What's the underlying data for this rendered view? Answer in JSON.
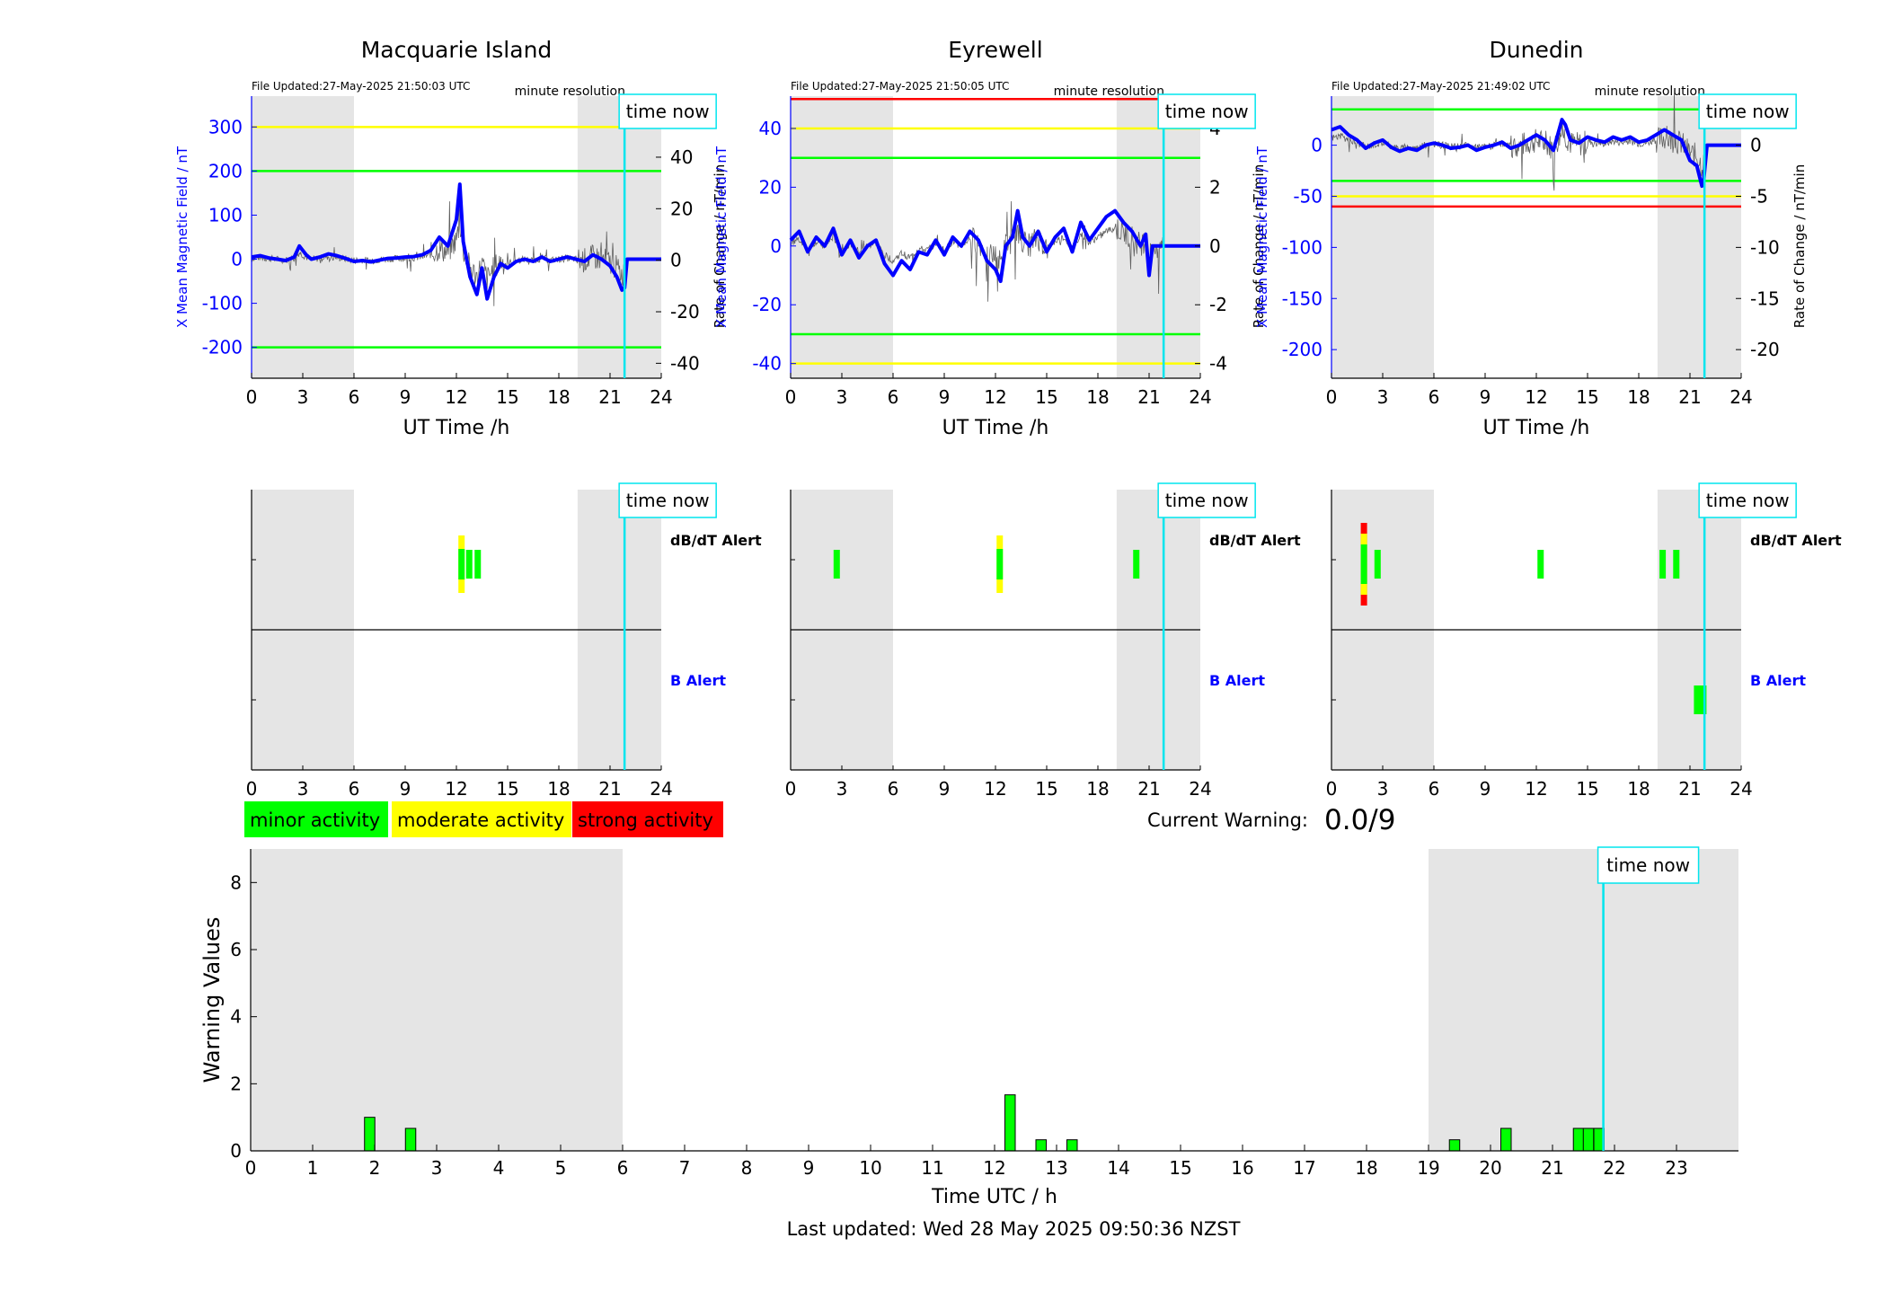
{
  "colors": {
    "shade": "#e5e5e5",
    "blue": "#0000ff",
    "cyan": "#00e5ee",
    "green": "#00ff00",
    "yellow": "#ffff00",
    "red": "#ff0000",
    "rate_trace": "#606060"
  },
  "stations": [
    {
      "id": "mq",
      "title": "Macquarie Island",
      "file_updated": "File Updated:27-May-2025 21:50:03 UTC",
      "resolution": "minute resolution",
      "time_now_label": "time now",
      "ylabel_left": "X Mean Magnetic Field / nT",
      "ylabel_right": "Rate of Change / nT/min",
      "xlabel": "UT Time /h",
      "ylim_left": [
        -270,
        370
      ],
      "ylim_right": [
        -45.8,
        63.7
      ],
      "yticks_left": [
        "300",
        "200",
        "100",
        "0",
        "-100",
        "-200"
      ],
      "yticks_right": [
        "60",
        "40",
        "20",
        "0",
        "-20",
        "-40"
      ],
      "xticks": [
        "0",
        "3",
        "6",
        "9",
        "12",
        "15",
        "18",
        "21",
        "24"
      ],
      "thresholds": [
        {
          "value": 300,
          "level": "yellow"
        },
        {
          "value": 200,
          "level": "green"
        },
        {
          "value": -200,
          "level": "green"
        }
      ],
      "time_now_h": 21.85,
      "shade_hours": [
        [
          0,
          6
        ],
        [
          19.1,
          24
        ]
      ],
      "mean_field_series": [
        [
          0,
          5
        ],
        [
          0.5,
          8
        ],
        [
          1,
          3
        ],
        [
          1.5,
          0
        ],
        [
          2,
          -3
        ],
        [
          2.5,
          5
        ],
        [
          2.8,
          30
        ],
        [
          3.2,
          10
        ],
        [
          3.5,
          0
        ],
        [
          4,
          5
        ],
        [
          4.5,
          12
        ],
        [
          5,
          8
        ],
        [
          5.5,
          2
        ],
        [
          6,
          -5
        ],
        [
          6.5,
          -3
        ],
        [
          7,
          -6
        ],
        [
          7.5,
          -2
        ],
        [
          8,
          2
        ],
        [
          8.5,
          3
        ],
        [
          9,
          5
        ],
        [
          9.5,
          6
        ],
        [
          10,
          10
        ],
        [
          10.5,
          20
        ],
        [
          11,
          50
        ],
        [
          11.5,
          30
        ],
        [
          12,
          90
        ],
        [
          12.2,
          170
        ],
        [
          12.4,
          40
        ],
        [
          12.8,
          -40
        ],
        [
          13.2,
          -80
        ],
        [
          13.5,
          -20
        ],
        [
          13.8,
          -90
        ],
        [
          14.2,
          -40
        ],
        [
          14.6,
          -10
        ],
        [
          15,
          -20
        ],
        [
          15.5,
          -5
        ],
        [
          16,
          0
        ],
        [
          16.5,
          -5
        ],
        [
          17,
          5
        ],
        [
          17.5,
          -5
        ],
        [
          18,
          0
        ],
        [
          18.5,
          5
        ],
        [
          19,
          0
        ],
        [
          19.5,
          -5
        ],
        [
          20,
          10
        ],
        [
          20.5,
          0
        ],
        [
          21,
          -15
        ],
        [
          21.4,
          -40
        ],
        [
          21.7,
          -70
        ],
        [
          21.85,
          -65
        ],
        [
          22,
          0
        ],
        [
          24,
          0
        ]
      ],
      "alerts": {
        "dbdt_label": "dB/dT Alert",
        "b_label": "B Alert",
        "dbdt": [
          {
            "h": 12.3,
            "level": "moderate"
          },
          {
            "h": 12.75,
            "level": "minor"
          },
          {
            "h": 13.25,
            "level": "minor"
          }
        ],
        "b": []
      }
    },
    {
      "id": "ey",
      "title": "Eyrewell",
      "file_updated": "File Updated:27-May-2025 21:50:05 UTC",
      "resolution": "minute resolution",
      "time_now_label": "time now",
      "ylabel_left": "X Mean Magnetic Field / nT",
      "ylabel_right": "Rate of Change / nT/min",
      "xlabel": "UT Time /h",
      "ylim_left": [
        -45,
        51
      ],
      "ylim_right": [
        -4.5,
        5.1
      ],
      "yticks_left": [
        "40",
        "20",
        "0",
        "-20",
        "-40"
      ],
      "yticks_right": [
        "4",
        "2",
        "0",
        "-2",
        "-4"
      ],
      "xticks": [
        "0",
        "3",
        "6",
        "9",
        "12",
        "15",
        "18",
        "21",
        "24"
      ],
      "thresholds": [
        {
          "value": 50,
          "level": "red"
        },
        {
          "value": 40,
          "level": "yellow"
        },
        {
          "value": 30,
          "level": "green"
        },
        {
          "value": -30,
          "level": "green"
        },
        {
          "value": -40,
          "level": "yellow"
        }
      ],
      "time_now_h": 21.85,
      "shade_hours": [
        [
          0,
          6
        ],
        [
          19.1,
          24
        ]
      ],
      "mean_field_series": [
        [
          0,
          2
        ],
        [
          0.5,
          5
        ],
        [
          1,
          -2
        ],
        [
          1.5,
          3
        ],
        [
          2,
          0
        ],
        [
          2.5,
          6
        ],
        [
          3,
          -3
        ],
        [
          3.5,
          2
        ],
        [
          4,
          -4
        ],
        [
          4.5,
          0
        ],
        [
          5,
          2
        ],
        [
          5.5,
          -6
        ],
        [
          6,
          -10
        ],
        [
          6.5,
          -5
        ],
        [
          7,
          -8
        ],
        [
          7.5,
          -2
        ],
        [
          8,
          -3
        ],
        [
          8.5,
          2
        ],
        [
          9,
          -3
        ],
        [
          9.5,
          3
        ],
        [
          10,
          0
        ],
        [
          10.5,
          5
        ],
        [
          11,
          2
        ],
        [
          11.5,
          -5
        ],
        [
          12,
          -8
        ],
        [
          12.3,
          -12
        ],
        [
          12.6,
          0
        ],
        [
          13,
          3
        ],
        [
          13.3,
          12
        ],
        [
          13.6,
          3
        ],
        [
          14,
          0
        ],
        [
          14.5,
          5
        ],
        [
          15,
          -2
        ],
        [
          15.5,
          3
        ],
        [
          16,
          6
        ],
        [
          16.5,
          -2
        ],
        [
          17,
          8
        ],
        [
          17.5,
          2
        ],
        [
          18,
          6
        ],
        [
          18.5,
          10
        ],
        [
          19,
          12
        ],
        [
          19.5,
          8
        ],
        [
          20,
          5
        ],
        [
          20.5,
          0
        ],
        [
          20.8,
          4
        ],
        [
          21,
          -10
        ],
        [
          21.2,
          0
        ],
        [
          24,
          0
        ]
      ],
      "alerts": {
        "dbdt_label": "dB/dT Alert",
        "b_label": "B Alert",
        "dbdt": [
          {
            "h": 2.7,
            "level": "minor"
          },
          {
            "h": 12.25,
            "level": "moderate"
          },
          {
            "h": 20.25,
            "level": "minor"
          }
        ],
        "b": []
      }
    },
    {
      "id": "du",
      "title": "Dunedin",
      "file_updated": "File Updated:27-May-2025 21:49:02 UTC",
      "resolution": "minute resolution",
      "time_now_label": "time now",
      "ylabel_left": "X Mean Magnetic Field / nT",
      "ylabel_right": "Rate of Change / nT/min",
      "xlabel": "UT Time /h",
      "ylim_left": [
        -228,
        48
      ],
      "ylim_right": [
        -22.8,
        4.8
      ],
      "yticks_left": [
        "0",
        "-50",
        "-100",
        "-150",
        "-200"
      ],
      "yticks_right": [
        "0",
        "-5",
        "-10",
        "-15",
        "-20"
      ],
      "xticks": [
        "0",
        "3",
        "6",
        "9",
        "12",
        "15",
        "18",
        "21",
        "24"
      ],
      "thresholds": [
        {
          "value": 35,
          "level": "green"
        },
        {
          "value": -35,
          "level": "green"
        },
        {
          "value": -50,
          "level": "yellow"
        },
        {
          "value": -60,
          "level": "red"
        }
      ],
      "time_now_h": 21.85,
      "shade_hours": [
        [
          0,
          6
        ],
        [
          19.1,
          24
        ]
      ],
      "mean_field_series": [
        [
          0,
          15
        ],
        [
          0.5,
          18
        ],
        [
          1,
          10
        ],
        [
          1.5,
          5
        ],
        [
          2,
          -3
        ],
        [
          2.5,
          2
        ],
        [
          3,
          5
        ],
        [
          3.5,
          -2
        ],
        [
          4,
          -6
        ],
        [
          4.5,
          -3
        ],
        [
          5,
          -5
        ],
        [
          5.5,
          0
        ],
        [
          6,
          2
        ],
        [
          6.5,
          0
        ],
        [
          7,
          -3
        ],
        [
          7.5,
          -2
        ],
        [
          8,
          0
        ],
        [
          8.5,
          -5
        ],
        [
          9,
          -2
        ],
        [
          9.5,
          0
        ],
        [
          10,
          3
        ],
        [
          10.5,
          -3
        ],
        [
          11,
          0
        ],
        [
          11.5,
          5
        ],
        [
          12,
          10
        ],
        [
          12.5,
          5
        ],
        [
          13,
          -5
        ],
        [
          13.5,
          25
        ],
        [
          13.7,
          20
        ],
        [
          14,
          5
        ],
        [
          14.5,
          2
        ],
        [
          15,
          8
        ],
        [
          15.5,
          5
        ],
        [
          16,
          3
        ],
        [
          16.5,
          8
        ],
        [
          17,
          5
        ],
        [
          17.5,
          8
        ],
        [
          18,
          3
        ],
        [
          18.5,
          5
        ],
        [
          19,
          10
        ],
        [
          19.5,
          15
        ],
        [
          20,
          10
        ],
        [
          20.5,
          5
        ],
        [
          21,
          -15
        ],
        [
          21.4,
          -20
        ],
        [
          21.7,
          -40
        ],
        [
          21.8,
          -35
        ],
        [
          22,
          0
        ],
        [
          24,
          0
        ]
      ],
      "alerts": {
        "dbdt_label": "dB/dT Alert",
        "b_label": "B Alert",
        "dbdt": [
          {
            "h": 1.9,
            "level": "strong"
          },
          {
            "h": 2.7,
            "level": "minor"
          },
          {
            "h": 12.25,
            "level": "minor"
          },
          {
            "h": 19.4,
            "level": "minor"
          },
          {
            "h": 20.2,
            "level": "minor"
          }
        ],
        "b": [
          {
            "h": 21.6,
            "level": "minor"
          }
        ]
      }
    }
  ],
  "legend": [
    {
      "label": "minor activity",
      "color": "#00ff00"
    },
    {
      "label": "moderate activity",
      "color": "#ffff00"
    },
    {
      "label": "strong activity",
      "color": "#ff0000"
    }
  ],
  "current_warning": {
    "label": "Current Warning:",
    "value": "0.0/9"
  },
  "chart_data": {
    "type": "bar",
    "ylabel": "Warning Values",
    "xlabel": "Time UTC / h",
    "xlim": [
      0,
      24
    ],
    "ylim": [
      0,
      9
    ],
    "yticks": [
      "0",
      "2",
      "4",
      "6",
      "8"
    ],
    "xticks": [
      "0",
      "1",
      "2",
      "3",
      "4",
      "5",
      "6",
      "7",
      "8",
      "9",
      "10",
      "11",
      "12",
      "13",
      "14",
      "15",
      "16",
      "17",
      "18",
      "19",
      "20",
      "21",
      "22",
      "23"
    ],
    "shade_hours": [
      [
        0,
        6
      ],
      [
        19,
        24
      ]
    ],
    "time_now_h": 21.82,
    "time_now_label": "time now",
    "bars": [
      {
        "h": 1.92,
        "value": 1.0
      },
      {
        "h": 2.58,
        "value": 0.67
      },
      {
        "h": 12.25,
        "value": 1.67
      },
      {
        "h": 12.75,
        "value": 0.33
      },
      {
        "h": 13.25,
        "value": 0.33
      },
      {
        "h": 19.42,
        "value": 0.33
      },
      {
        "h": 20.25,
        "value": 0.67
      },
      {
        "h": 21.42,
        "value": 0.67
      },
      {
        "h": 21.58,
        "value": 0.67
      },
      {
        "h": 21.75,
        "value": 0.67
      }
    ]
  },
  "footer": {
    "last_updated": "Last updated: Wed 28 May 2025 09:50:36 NZST"
  }
}
